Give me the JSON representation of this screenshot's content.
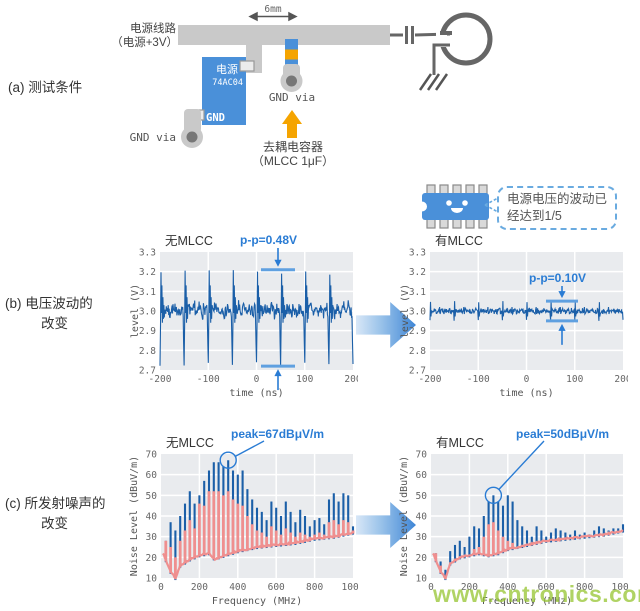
{
  "colors": {
    "ic_blue": "#4a90d9",
    "orange": "#f5a400",
    "bar_gray": "#c9c9c9",
    "stroke_gray": "#666666",
    "trace_blue": "#1b5fa8",
    "noise_pink": "#ef8f8f",
    "annotation_blue": "#2a7cd4",
    "marker_blue": "#5fa0e0",
    "plot_bg": "#e9ebee",
    "watermark_green": "#9ac638"
  },
  "section_a": {
    "label": "(a) 测试条件",
    "dimension": "6mm",
    "power_line_label_1": "电源线路",
    "power_line_label_2": "（电源+3V）",
    "ic": {
      "power_pin": "电源",
      "part_number": "74AC04",
      "gnd_pin": "GND"
    },
    "gnd_via_left": "GND via",
    "gnd_via_mid": "GND via",
    "decoupling_label_1": "去耦电容器",
    "decoupling_label_2": "（MLCC 1μF）"
  },
  "callout": {
    "line1": "电源电压的波动已",
    "line2": "经达到1/5"
  },
  "section_b": {
    "label_1": "(b) 电压波动的",
    "label_2": "改变"
  },
  "section_c": {
    "label_1": "(c) 所发射噪声的",
    "label_2": "改变"
  },
  "watermark": "www.cntronics.com",
  "chart_data": [
    {
      "id": "voltage_no_mlcc",
      "type": "line",
      "title": "无MLCC",
      "xlabel": "time (ns)",
      "ylabel": "level (V)",
      "xlim": [
        -200,
        200
      ],
      "ylim": [
        2.7,
        3.3
      ],
      "xticks": [
        "-200",
        "-100",
        "0",
        "100",
        "200"
      ],
      "yticks": [
        "3.3",
        "3.2",
        "3.1",
        "3.0",
        "2.9",
        "2.8",
        "2.7"
      ],
      "annotation": "p-p=0.48V",
      "markers": {
        "high": 3.21,
        "low": 2.72
      },
      "waveform": {
        "baseline": 3.0,
        "period_ns": 50,
        "peak_high": 3.21,
        "peak_low": 2.72,
        "noise": 0.03,
        "seed": 7
      }
    },
    {
      "id": "voltage_with_mlcc",
      "type": "line",
      "title": "有MLCC",
      "xlabel": "time (ns)",
      "ylabel": "level (V)",
      "xlim": [
        -200,
        200
      ],
      "ylim": [
        2.7,
        3.3
      ],
      "xticks": [
        "-200",
        "-100",
        "0",
        "100",
        "200"
      ],
      "yticks": [
        "3.3",
        "3.2",
        "3.1",
        "3.0",
        "2.9",
        "2.8",
        "2.7"
      ],
      "annotation": "p-p=0.10V",
      "markers": {
        "high": 3.05,
        "low": 2.95
      },
      "waveform": {
        "baseline": 3.0,
        "period_ns": 50,
        "peak_high": 3.05,
        "peak_low": 2.95,
        "noise": 0.013,
        "seed": 11
      }
    },
    {
      "id": "noise_no_mlcc",
      "type": "bar",
      "title": "无MLCC",
      "xlabel": "Frequency (MHz)",
      "ylabel": "Noise Level (dBuV/m)",
      "xlim": [
        0,
        1000
      ],
      "ylim": [
        10,
        70
      ],
      "xticks": [
        "0",
        "200",
        "400",
        "600",
        "800",
        "1000"
      ],
      "yticks": [
        "70",
        "60",
        "50",
        "40",
        "30",
        "20",
        "10"
      ],
      "annotation": "peak=67dBμV/m",
      "peak": {
        "freq_mhz": 350,
        "level": 67
      },
      "spike_spacing_mhz": 25,
      "series": [
        {
          "name": "harmonic peaks (blue)",
          "values": [
            28,
            37,
            33,
            40,
            46,
            52,
            46,
            50,
            57,
            62,
            66,
            66,
            64,
            67,
            62,
            60,
            62,
            53,
            48,
            44,
            42,
            38,
            47,
            44,
            40,
            47,
            42,
            37,
            43,
            40,
            35,
            38,
            39,
            36,
            48,
            51,
            47,
            51,
            50,
            35
          ]
        },
        {
          "name": "envelope peaks (pink)",
          "values": [
            28,
            25,
            20,
            28,
            33,
            38,
            34,
            46,
            45,
            52,
            52,
            52,
            50,
            52,
            48,
            46,
            45,
            40,
            36,
            33,
            32,
            30,
            35,
            33,
            31,
            34,
            32,
            30,
            32,
            31,
            30,
            31,
            32,
            31,
            37,
            38,
            36,
            38,
            37,
            33
          ]
        }
      ],
      "baseline": [
        [
          10,
          22
        ],
        [
          50,
          13
        ],
        [
          75,
          10
        ],
        [
          100,
          16
        ],
        [
          150,
          19
        ],
        [
          200,
          21
        ],
        [
          250,
          22
        ],
        [
          280,
          19
        ],
        [
          300,
          20
        ],
        [
          400,
          23
        ],
        [
          500,
          25
        ],
        [
          600,
          26
        ],
        [
          700,
          27
        ],
        [
          800,
          29
        ],
        [
          900,
          30
        ],
        [
          1000,
          32
        ]
      ]
    },
    {
      "id": "noise_with_mlcc",
      "type": "bar",
      "title": "有MLCC",
      "xlabel": "Frequency (MHz)",
      "ylabel": "Noise Level (dBuV/m)",
      "xlim": [
        0,
        1000
      ],
      "ylim": [
        10,
        70
      ],
      "xticks": [
        "0",
        "200",
        "400",
        "600",
        "800",
        "1000"
      ],
      "yticks": [
        "70",
        "60",
        "50",
        "40",
        "30",
        "20",
        "10"
      ],
      "annotation": "peak=50dBμV/m",
      "peak": {
        "freq_mhz": 325,
        "level": 50
      },
      "spike_spacing_mhz": 25,
      "series": [
        {
          "name": "harmonic peaks (blue)",
          "values": [
            22,
            18,
            14,
            23,
            26,
            28,
            25,
            30,
            35,
            34,
            40,
            47,
            50,
            47,
            45,
            50,
            47,
            38,
            35,
            33,
            30,
            35,
            33,
            30,
            32,
            34,
            33,
            32,
            31,
            33,
            31,
            32,
            31,
            33,
            35,
            34,
            33,
            34,
            34,
            36
          ]
        },
        {
          "name": "envelope peaks (pink)",
          "values": [
            22,
            16,
            11,
            17,
            19,
            20,
            20,
            21,
            24,
            25,
            30,
            36,
            37,
            33,
            30,
            28,
            27,
            24,
            24,
            25,
            25,
            26,
            26,
            26,
            27,
            27,
            27,
            28,
            28,
            29,
            29,
            30,
            30,
            30,
            31,
            31,
            31,
            32,
            32,
            33
          ]
        }
      ],
      "baseline": [
        [
          10,
          22
        ],
        [
          50,
          13
        ],
        [
          75,
          10
        ],
        [
          100,
          17
        ],
        [
          150,
          20
        ],
        [
          200,
          21
        ],
        [
          250,
          22
        ],
        [
          300,
          21
        ],
        [
          350,
          22
        ],
        [
          400,
          24
        ],
        [
          450,
          25
        ],
        [
          500,
          26
        ],
        [
          600,
          28
        ],
        [
          700,
          29
        ],
        [
          800,
          30
        ],
        [
          900,
          31
        ],
        [
          1000,
          33
        ]
      ]
    }
  ]
}
